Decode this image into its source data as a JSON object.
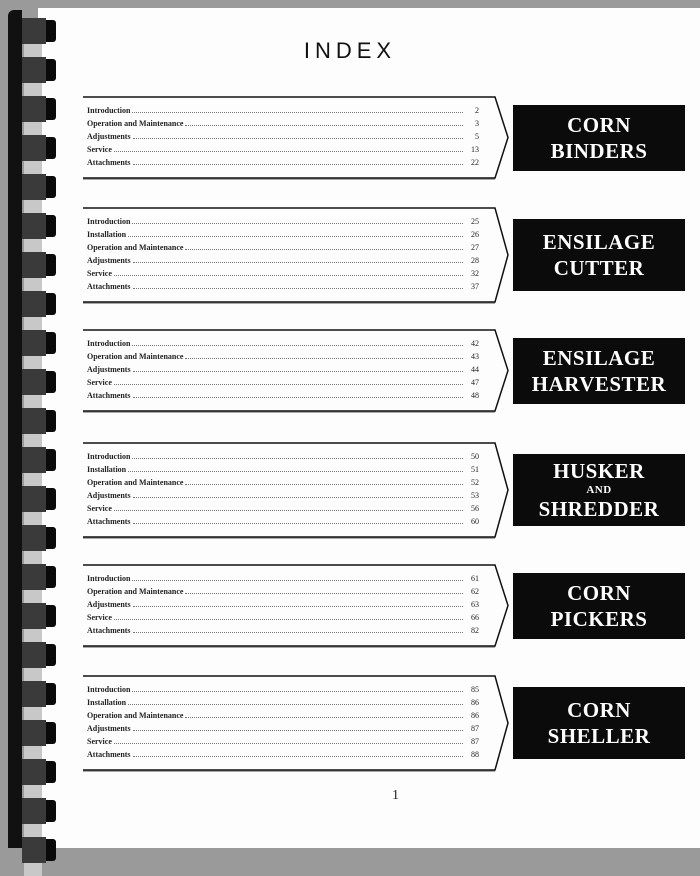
{
  "title": "INDEX",
  "page_number": "1",
  "sections": [
    {
      "banner": [
        "CORN",
        "BINDERS"
      ],
      "items": [
        {
          "label": "Introduction",
          "page": "2"
        },
        {
          "label": "Operation and Maintenance",
          "page": "3"
        },
        {
          "label": "Adjustments",
          "page": "5"
        },
        {
          "label": "Service",
          "page": "13"
        },
        {
          "label": "Attachments",
          "page": "22"
        }
      ]
    },
    {
      "banner": [
        "ENSILAGE",
        "CUTTER"
      ],
      "items": [
        {
          "label": "Introduction",
          "page": "25"
        },
        {
          "label": "Installation",
          "page": "26"
        },
        {
          "label": "Operation and Maintenance",
          "page": "27"
        },
        {
          "label": "Adjustments",
          "page": "28"
        },
        {
          "label": "Service",
          "page": "32"
        },
        {
          "label": "Attachments",
          "page": "37"
        }
      ]
    },
    {
      "banner": [
        "ENSILAGE",
        "HARVESTER"
      ],
      "items": [
        {
          "label": "Introduction",
          "page": "42"
        },
        {
          "label": "Operation and Maintenance",
          "page": "43"
        },
        {
          "label": "Adjustments",
          "page": "44"
        },
        {
          "label": "Service",
          "page": "47"
        },
        {
          "label": "Attachments",
          "page": "48"
        }
      ]
    },
    {
      "banner": [
        "HUSKER",
        "AND",
        "SHREDDER"
      ],
      "items": [
        {
          "label": "Introduction",
          "page": "50"
        },
        {
          "label": "Installation",
          "page": "51"
        },
        {
          "label": "Operation and Maintenance",
          "page": "52"
        },
        {
          "label": "Adjustments",
          "page": "53"
        },
        {
          "label": "Service",
          "page": "56"
        },
        {
          "label": "Attachments",
          "page": "60"
        }
      ]
    },
    {
      "banner": [
        "CORN",
        "PICKERS"
      ],
      "items": [
        {
          "label": "Introduction",
          "page": "61"
        },
        {
          "label": "Operation and Maintenance",
          "page": "62"
        },
        {
          "label": "Adjustments",
          "page": "63"
        },
        {
          "label": "Service",
          "page": "66"
        },
        {
          "label": "Attachments",
          "page": "82"
        }
      ]
    },
    {
      "banner": [
        "CORN",
        "SHELLER"
      ],
      "items": [
        {
          "label": "Introduction",
          "page": "85"
        },
        {
          "label": "Installation",
          "page": "86"
        },
        {
          "label": "Operation and Maintenance",
          "page": "86"
        },
        {
          "label": "Adjustments",
          "page": "87"
        },
        {
          "label": "Service",
          "page": "87"
        },
        {
          "label": "Attachments",
          "page": "88"
        }
      ]
    }
  ]
}
